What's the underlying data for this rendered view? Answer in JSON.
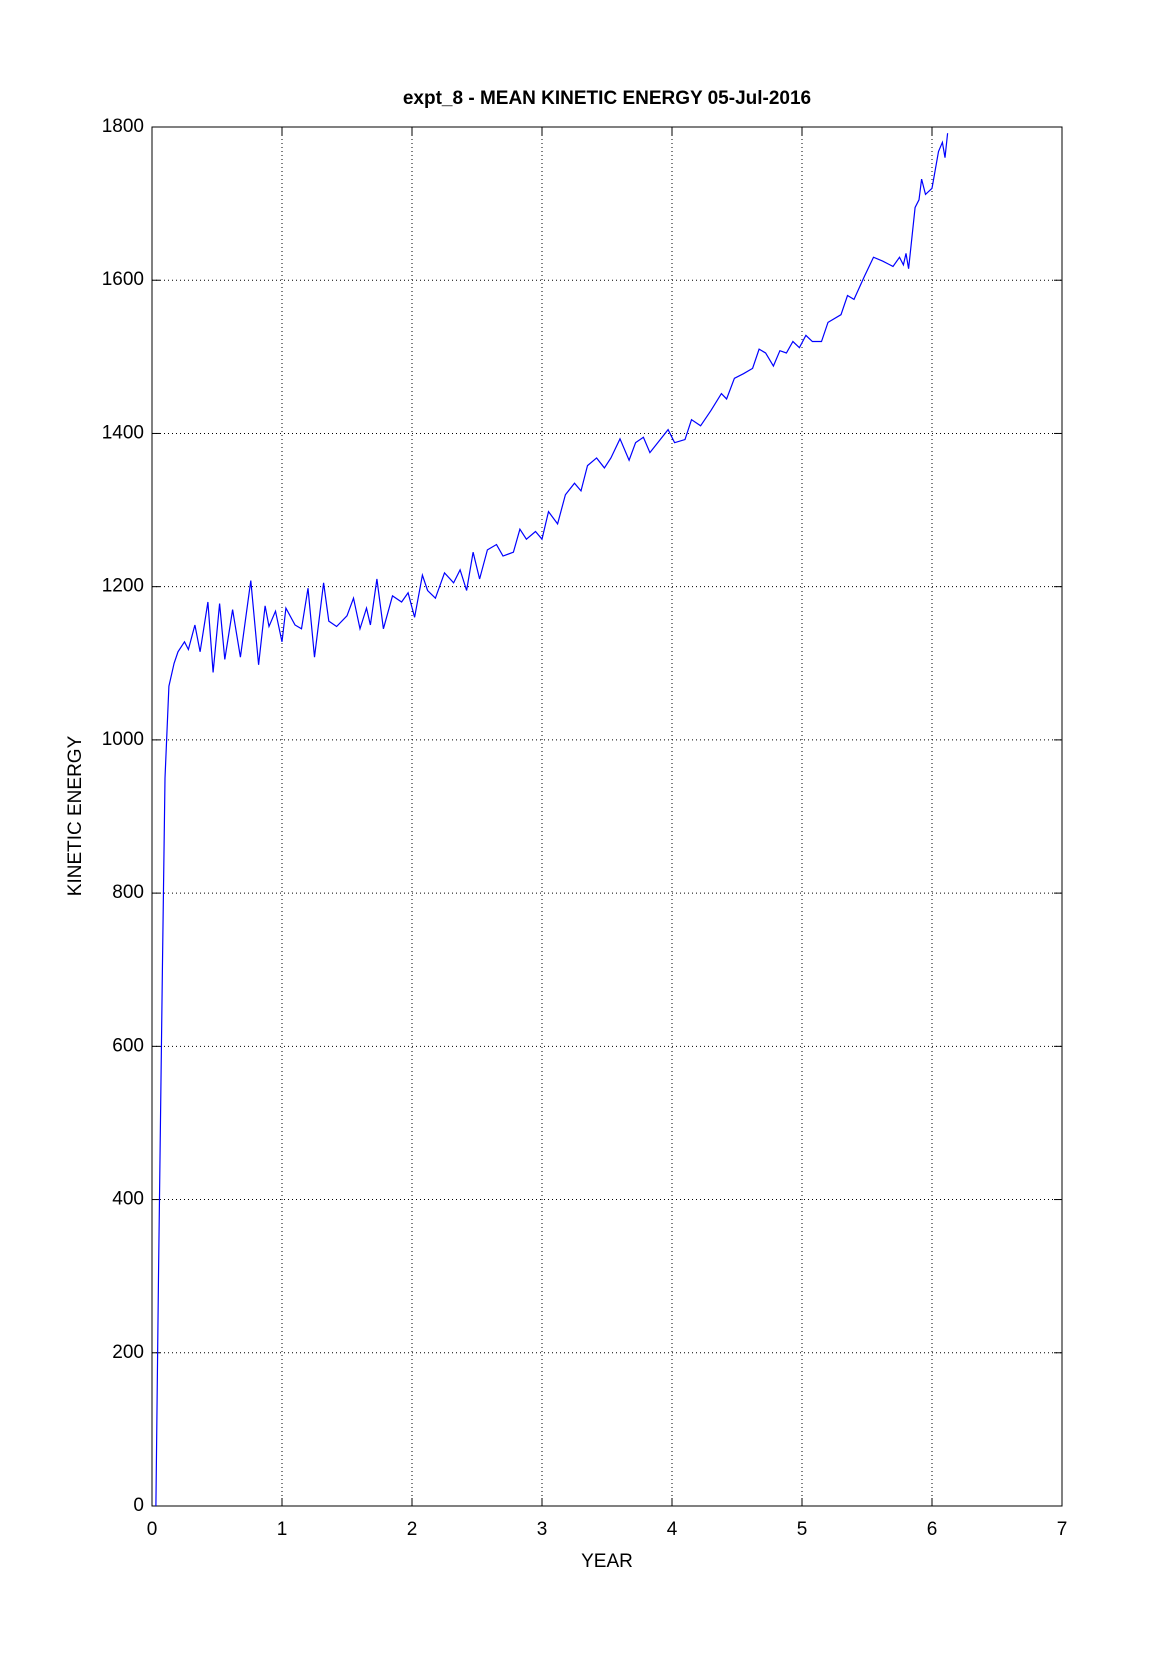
{
  "chart_data": {
    "type": "line",
    "title": "expt_8 - MEAN KINETIC ENERGY 05-Jul-2016",
    "xlabel": "YEAR",
    "ylabel": "KINETIC ENERGY",
    "xlim": [
      0,
      7
    ],
    "ylim": [
      0,
      1800
    ],
    "xticks": [
      0,
      1,
      2,
      3,
      4,
      5,
      6,
      7
    ],
    "yticks": [
      0,
      200,
      400,
      600,
      800,
      1000,
      1200,
      1400,
      1600,
      1800
    ],
    "grid": true,
    "color": "#0000ff",
    "x": [
      0.03,
      0.05,
      0.08,
      0.1,
      0.13,
      0.17,
      0.2,
      0.25,
      0.28,
      0.33,
      0.37,
      0.43,
      0.47,
      0.52,
      0.56,
      0.62,
      0.68,
      0.76,
      0.82,
      0.87,
      0.9,
      0.95,
      1.0,
      1.03,
      1.1,
      1.15,
      1.2,
      1.25,
      1.32,
      1.36,
      1.42,
      1.5,
      1.55,
      1.6,
      1.65,
      1.68,
      1.73,
      1.78,
      1.85,
      1.92,
      1.97,
      2.02,
      2.08,
      2.12,
      2.18,
      2.25,
      2.32,
      2.37,
      2.42,
      2.47,
      2.52,
      2.58,
      2.65,
      2.7,
      2.78,
      2.83,
      2.88,
      2.95,
      3.0,
      3.05,
      3.12,
      3.18,
      3.25,
      3.3,
      3.35,
      3.42,
      3.48,
      3.53,
      3.6,
      3.67,
      3.72,
      3.78,
      3.83,
      3.9,
      3.97,
      4.02,
      4.1,
      4.15,
      4.22,
      4.3,
      4.38,
      4.42,
      4.48,
      4.55,
      4.62,
      4.67,
      4.72,
      4.78,
      4.83,
      4.88,
      4.93,
      4.98,
      5.03,
      5.08,
      5.15,
      5.2,
      5.3,
      5.35,
      5.4,
      5.48,
      5.55,
      5.62,
      5.7,
      5.75,
      5.78,
      5.8,
      5.82,
      5.87,
      5.9,
      5.92,
      5.95,
      6.0,
      6.05,
      6.08,
      6.1,
      6.12
    ],
    "values": [
      0,
      300,
      700,
      950,
      1070,
      1100,
      1115,
      1128,
      1118,
      1150,
      1115,
      1180,
      1088,
      1178,
      1105,
      1170,
      1108,
      1208,
      1098,
      1175,
      1148,
      1168,
      1128,
      1172,
      1150,
      1145,
      1198,
      1108,
      1205,
      1155,
      1148,
      1162,
      1185,
      1145,
      1172,
      1150,
      1210,
      1145,
      1188,
      1180,
      1192,
      1160,
      1215,
      1195,
      1185,
      1218,
      1205,
      1222,
      1195,
      1245,
      1210,
      1248,
      1255,
      1240,
      1245,
      1275,
      1262,
      1272,
      1262,
      1298,
      1282,
      1320,
      1335,
      1325,
      1358,
      1368,
      1355,
      1368,
      1393,
      1365,
      1388,
      1395,
      1375,
      1390,
      1405,
      1388,
      1392,
      1418,
      1410,
      1430,
      1452,
      1445,
      1472,
      1478,
      1485,
      1510,
      1505,
      1488,
      1508,
      1505,
      1520,
      1512,
      1528,
      1520,
      1520,
      1545,
      1555,
      1580,
      1575,
      1605,
      1630,
      1625,
      1618,
      1630,
      1620,
      1635,
      1615,
      1695,
      1705,
      1732,
      1712,
      1720,
      1768,
      1780,
      1760,
      1792
    ]
  }
}
